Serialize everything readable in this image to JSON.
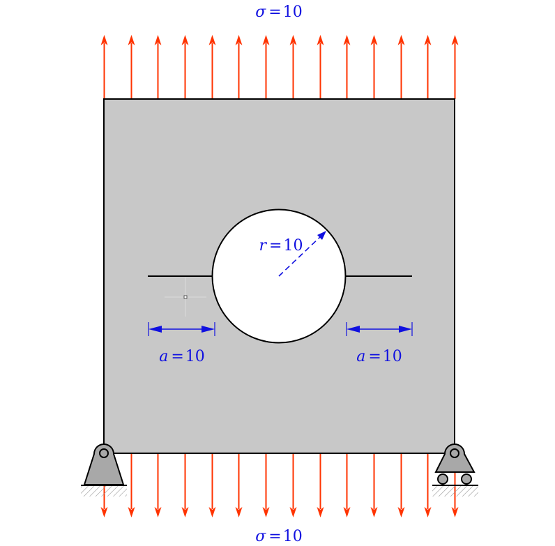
{
  "colors": {
    "plate": "#c8c8c8",
    "outline": "#000000",
    "load_arrow": "#ff3300",
    "dimension": "#1010e0",
    "support_fill": "#a8a8a8",
    "hatch": "#9a9a9a"
  },
  "loads": {
    "top": {
      "symbol": "σ",
      "equals": "=",
      "value": "10"
    },
    "bottom": {
      "symbol": "σ",
      "equals": "=",
      "value": "10"
    },
    "arrow_count": 14
  },
  "hole": {
    "symbol": "r",
    "equals": "=",
    "value": "10"
  },
  "cracks": {
    "left": {
      "symbol": "a",
      "equals": "=",
      "value": "10"
    },
    "right": {
      "symbol": "a",
      "equals": "=",
      "value": "10"
    }
  },
  "supports": {
    "left": "pin-support-icon",
    "right": "roller-support-icon"
  }
}
